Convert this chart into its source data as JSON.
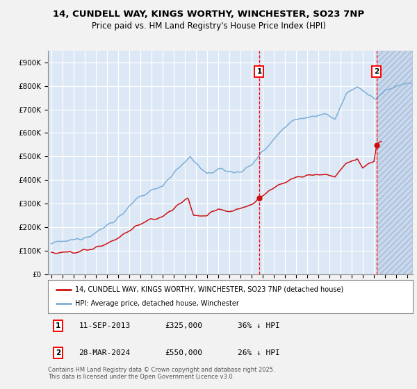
{
  "title_line1": "14, CUNDELL WAY, KINGS WORTHY, WINCHESTER, SO23 7NP",
  "title_line2": "Price paid vs. HM Land Registry's House Price Index (HPI)",
  "background_color": "#f0f0f0",
  "plot_bg_color": "#dce8f5",
  "grid_color": "#ffffff",
  "hpi_color": "#7aaed6",
  "price_color": "#cc1111",
  "ylim": [
    0,
    950000
  ],
  "xlim_start": 1994.7,
  "xlim_end": 2027.5,
  "marker1_x": 2013.69,
  "marker2_x": 2024.24,
  "marker1_price": 325000,
  "marker2_price": 550000,
  "legend_label1": "14, CUNDELL WAY, KINGS WORTHY, WINCHESTER, SO23 7NP (detached house)",
  "legend_label2": "HPI: Average price, detached house, Winchester",
  "ann1_date": "11-SEP-2013",
  "ann1_price": "£325,000",
  "ann1_hpi": "36% ↓ HPI",
  "ann2_date": "28-MAR-2024",
  "ann2_price": "£550,000",
  "ann2_hpi": "26% ↓ HPI",
  "footer": "Contains HM Land Registry data © Crown copyright and database right 2025.\nThis data is licensed under the Open Government Licence v3.0.",
  "yticks": [
    0,
    100000,
    200000,
    300000,
    400000,
    500000,
    600000,
    700000,
    800000,
    900000
  ],
  "ytick_labels": [
    "£0",
    "£100K",
    "£200K",
    "£300K",
    "£400K",
    "£500K",
    "£600K",
    "£700K",
    "£800K",
    "£900K"
  ]
}
